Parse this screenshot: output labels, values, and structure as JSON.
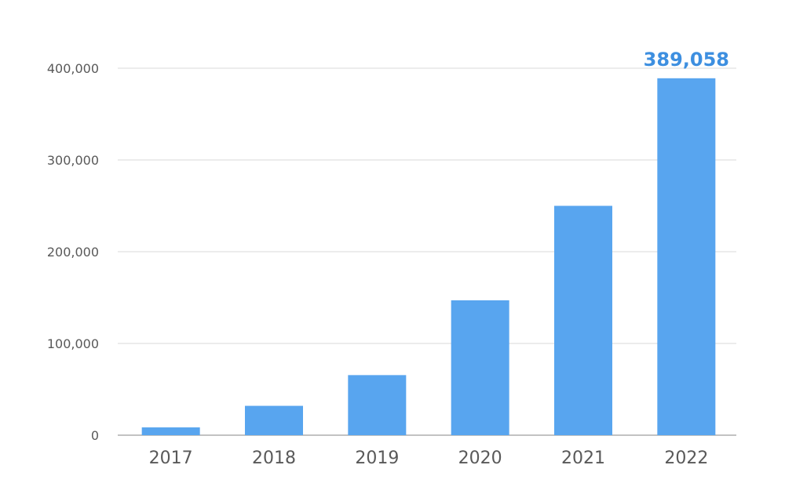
{
  "colors": {
    "bar": "#58a5ef",
    "data_label": "#3d8fe0",
    "grid": "#d9d9d9",
    "axis_text": "#595959"
  },
  "chart_data": {
    "type": "bar",
    "title": "",
    "xlabel": "",
    "ylabel": "",
    "categories": [
      "2017",
      "2018",
      "2019",
      "2020",
      "2021",
      "2022"
    ],
    "values": [
      8500,
      32000,
      65500,
      147000,
      250000,
      389058
    ],
    "ylim": [
      0,
      400000
    ],
    "y_ticks": [
      0,
      100000,
      200000,
      300000,
      400000
    ],
    "y_tick_labels": [
      "0",
      "100,000",
      "200,000",
      "300,000",
      "400,000"
    ],
    "grid": true,
    "legend": "none",
    "data_labels": [
      {
        "category": "2022",
        "text": "389,058"
      }
    ]
  }
}
